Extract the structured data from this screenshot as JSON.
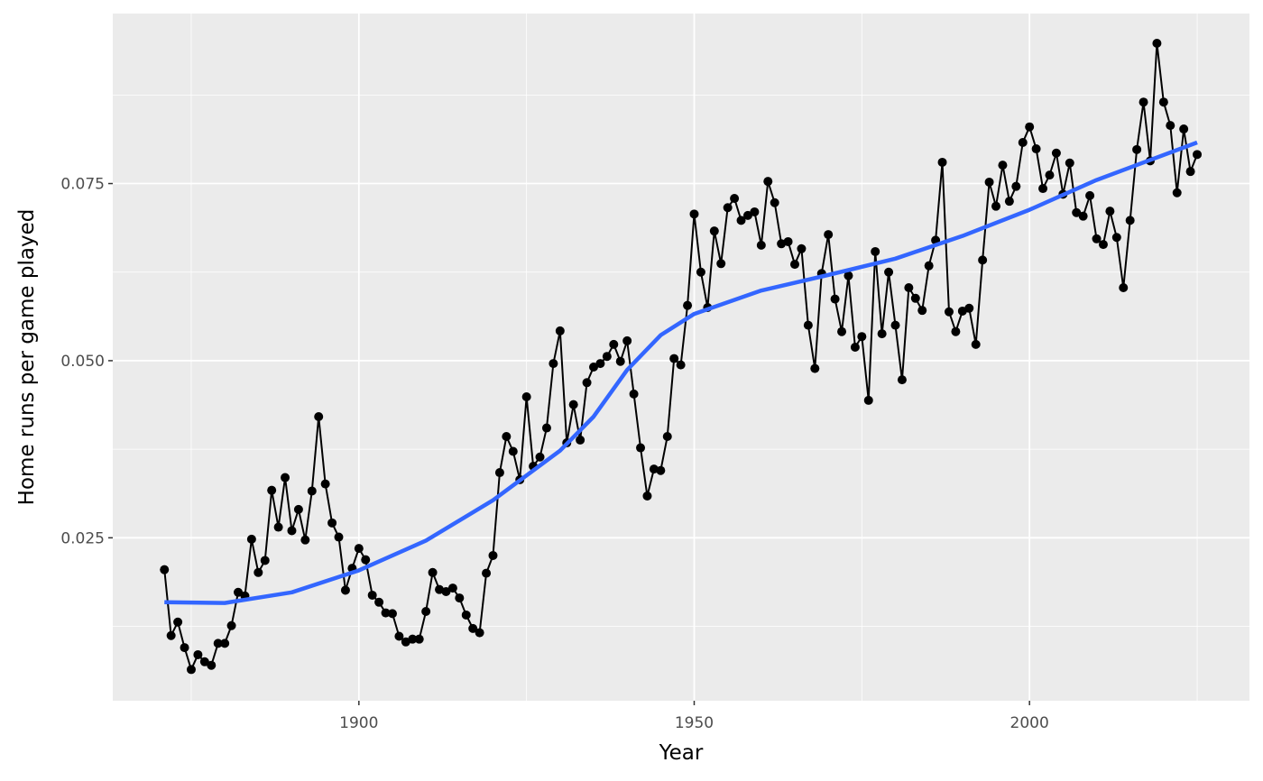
{
  "chart_data": {
    "type": "line",
    "xlabel": "Year",
    "ylabel": "Home runs per game played",
    "xlim": [
      1863.3,
      2032.8
    ],
    "ylim": [
      0.002,
      0.099
    ],
    "xticks": [
      1900,
      1950,
      2000
    ],
    "yticks": [
      0.025,
      {
        "value": 0.05,
        "label": "0.050"
      },
      {
        "value": 0.075,
        "label": "0.075"
      }
    ],
    "grid": true,
    "background": "#ebebeb",
    "series": [
      {
        "color": "#000000",
        "markers": true,
        "x": [
          1871,
          1872,
          1873,
          1874,
          1875,
          1876,
          1877,
          1878,
          1879,
          1880,
          1881,
          1882,
          1883,
          1884,
          1885,
          1886,
          1887,
          1888,
          1889,
          1890,
          1891,
          1892,
          1893,
          1894,
          1895,
          1896,
          1897,
          1898,
          1899,
          1900,
          1901,
          1902,
          1903,
          1904,
          1905,
          1906,
          1907,
          1908,
          1909,
          1910,
          1911,
          1912,
          1913,
          1914,
          1915,
          1916,
          1917,
          1918,
          1919,
          1920,
          1921,
          1922,
          1923,
          1924,
          1925,
          1926,
          1927,
          1928,
          1929,
          1930,
          1931,
          1932,
          1933,
          1934,
          1935,
          1936,
          1937,
          1938,
          1939,
          1940,
          1941,
          1942,
          1943,
          1944,
          1945,
          1946,
          1947,
          1948,
          1949,
          1950,
          1951,
          1952,
          1953,
          1954,
          1955,
          1956,
          1957,
          1958,
          1959,
          1960,
          1961,
          1962,
          1963,
          1964,
          1965,
          1966,
          1967,
          1968,
          1969,
          1970,
          1971,
          1972,
          1973,
          1974,
          1975,
          1976,
          1977,
          1978,
          1979,
          1980,
          1981,
          1982,
          1983,
          1984,
          1985,
          1986,
          1987,
          1988,
          1989,
          1990,
          1991,
          1992,
          1993,
          1994,
          1995,
          1996,
          1997,
          1998,
          1999,
          2000,
          2001,
          2002,
          2003,
          2004,
          2005,
          2006,
          2007,
          2008,
          2009,
          2010,
          2011,
          2012,
          2013,
          2014,
          2015,
          2016,
          2017,
          2018,
          2019,
          2020,
          2021,
          2022,
          2023,
          2024,
          2025
        ],
        "values": [
          0.0205,
          0.0112,
          0.0131,
          0.0095,
          0.0064,
          0.0085,
          0.0075,
          0.007,
          0.0101,
          0.0101,
          0.0126,
          0.0173,
          0.0168,
          0.0248,
          0.0201,
          0.0218,
          0.0317,
          0.0265,
          0.0335,
          0.026,
          0.029,
          0.0247,
          0.0316,
          0.0421,
          0.0326,
          0.0271,
          0.0251,
          0.0176,
          0.0207,
          0.0235,
          0.0219,
          0.0169,
          0.0159,
          0.0144,
          0.0143,
          0.0111,
          0.0103,
          0.0107,
          0.0107,
          0.0146,
          0.0201,
          0.0177,
          0.0174,
          0.0179,
          0.0165,
          0.0141,
          0.0122,
          0.0116,
          0.02,
          0.0225,
          0.0342,
          0.0393,
          0.0372,
          0.0332,
          0.0449,
          0.0351,
          0.0364,
          0.0405,
          0.0496,
          0.0542,
          0.0384,
          0.0438,
          0.0388,
          0.0469,
          0.0491,
          0.0496,
          0.0506,
          0.0523,
          0.0499,
          0.0528,
          0.0453,
          0.0377,
          0.0309,
          0.0347,
          0.0345,
          0.0393,
          0.0503,
          0.0494,
          0.0578,
          0.0707,
          0.0625,
          0.0575,
          0.0683,
          0.0637,
          0.0716,
          0.0729,
          0.0698,
          0.0705,
          0.071,
          0.0663,
          0.0753,
          0.0723,
          0.0665,
          0.0668,
          0.0636,
          0.0658,
          0.055,
          0.0489,
          0.0623,
          0.0678,
          0.0587,
          0.0541,
          0.062,
          0.0519,
          0.0534,
          0.0444,
          0.0654,
          0.0538,
          0.0625,
          0.055,
          0.0473,
          0.0603,
          0.0588,
          0.0571,
          0.0634,
          0.067,
          0.078,
          0.0569,
          0.0541,
          0.057,
          0.0574,
          0.0523,
          0.0642,
          0.0752,
          0.0718,
          0.0776,
          0.0725,
          0.0746,
          0.0808,
          0.083,
          0.0799,
          0.0743,
          0.0762,
          0.0793,
          0.0735,
          0.0779,
          0.0709,
          0.0704,
          0.0733,
          0.0672,
          0.0664,
          0.0711,
          0.0674,
          0.0603,
          0.0698,
          0.0798,
          0.0865,
          0.0782,
          0.0948,
          0.0865,
          0.0832,
          0.0737,
          0.0827,
          0.0767,
          0.0791
        ]
      },
      {
        "color": "#3366ff",
        "markers": false,
        "x": [
          1871,
          1880,
          1890,
          1900,
          1910,
          1920,
          1930,
          1935,
          1940,
          1945,
          1950,
          1960,
          1970,
          1980,
          1990,
          2000,
          2010,
          2025
        ],
        "values": [
          0.0159,
          0.0158,
          0.0173,
          0.0204,
          0.0246,
          0.0303,
          0.0373,
          0.0421,
          0.0487,
          0.0536,
          0.0566,
          0.0599,
          0.0621,
          0.0644,
          0.0676,
          0.0713,
          0.0755,
          0.0808
        ]
      }
    ]
  }
}
